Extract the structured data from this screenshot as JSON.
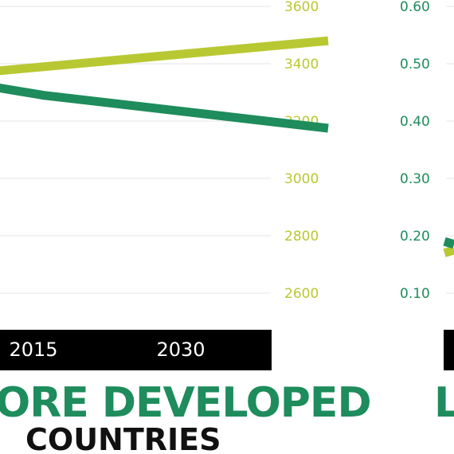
{
  "chart_data": [
    {
      "type": "line",
      "title": "ORE DEVELOPED",
      "subtitle": "COUNTRIES",
      "x_ticks": [
        "2015",
        "2030"
      ],
      "y_ticks": [
        3600,
        3400,
        3200,
        3000,
        2800,
        2600
      ],
      "ylim": [
        2600,
        3600
      ],
      "grid": true,
      "series": [
        {
          "color": "#b8c832",
          "points": [
            {
              "x": 2005,
              "y": 3355
            },
            {
              "x": 2045,
              "y": 3480
            }
          ]
        },
        {
          "color": "#1e8c5c",
          "points": [
            {
              "x": 2005,
              "y": 3355
            },
            {
              "x": 2009,
              "y": 3330
            },
            {
              "x": 2016,
              "y": 3290
            },
            {
              "x": 2045,
              "y": 3175
            }
          ]
        }
      ]
    },
    {
      "type": "line",
      "title": "L",
      "y_ticks": [
        0.6,
        0.5,
        0.4,
        0.3,
        0.2,
        0.1
      ],
      "ylim": [
        0.1,
        0.6
      ],
      "grid": true,
      "series": [
        {
          "color": "#b8c832",
          "points": [
            {
              "x": 0,
              "y": 0.17
            },
            {
              "x": 1,
              "y": 0.175
            }
          ]
        },
        {
          "color": "#1e8c5c",
          "points": [
            {
              "x": 0,
              "y": 0.19
            },
            {
              "x": 1,
              "y": 0.185
            }
          ]
        }
      ]
    }
  ],
  "colors": {
    "accent_green": "#1e8c5c",
    "accent_lime": "#b8c832",
    "bar_black": "#000000",
    "axis_left_text": "#b8c832",
    "axis_right_text": "#1e8c5c"
  }
}
